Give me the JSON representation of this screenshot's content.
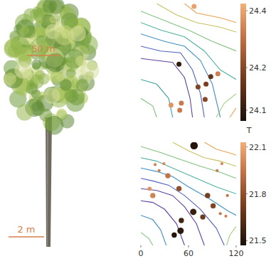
{
  "figure": {
    "labels": [
      "50 m",
      "2 m"
    ]
  },
  "chart_data": [
    {
      "type": "scatter",
      "xlim": [
        0,
        120
      ],
      "ylim": [
        0,
        120
      ],
      "tick_labels": false,
      "color_range": [
        24.07,
        24.4
      ],
      "color_ticks": [
        {
          "value": 24.38,
          "label": "24.4"
        },
        {
          "value": 24.22,
          "label": "24.2"
        },
        {
          "value": 24.1,
          "label": "24.1"
        }
      ],
      "color_label": "T",
      "series": [
        {
          "type": "line",
          "color": "#e8a050",
          "x": [
            55,
            70,
            100,
            120
          ],
          "values": [
            120,
            110,
            105,
            100
          ]
        },
        {
          "type": "line",
          "color": "#c8c060",
          "x": [
            20,
            45,
            70,
            100,
            120
          ],
          "values": [
            120,
            108,
            100,
            95,
            90
          ]
        },
        {
          "type": "line",
          "color": "#80c080",
          "x": [
            0,
            30,
            60,
            90,
            120
          ],
          "values": [
            112,
            102,
            92,
            80,
            70
          ]
        },
        {
          "type": "line",
          "color": "#50b0a0",
          "x": [
            0,
            25,
            55,
            80,
            100,
            120
          ],
          "values": [
            100,
            92,
            85,
            70,
            50,
            40
          ]
        },
        {
          "type": "line",
          "color": "#4090c0",
          "x": [
            0,
            30,
            55,
            75,
            90,
            100
          ],
          "values": [
            88,
            80,
            75,
            60,
            35,
            0
          ]
        },
        {
          "type": "line",
          "color": "#5060c0",
          "x": [
            0,
            25,
            50,
            65,
            75,
            80
          ],
          "values": [
            75,
            70,
            68,
            50,
            25,
            0
          ]
        },
        {
          "type": "line",
          "color": "#6040a0",
          "x": [
            0,
            20,
            40,
            55,
            62,
            65
          ],
          "values": [
            62,
            60,
            58,
            42,
            20,
            0
          ]
        },
        {
          "type": "line",
          "color": "#40a0a0",
          "x": [
            0,
            20,
            35,
            40
          ],
          "values": [
            40,
            35,
            20,
            0
          ]
        },
        {
          "type": "line",
          "color": "#80c080",
          "x": [
            0,
            15,
            20
          ],
          "values": [
            20,
            12,
            0
          ]
        },
        {
          "type": "line",
          "color": "#a0d080",
          "x": [
            120,
            105,
            95
          ],
          "values": [
            25,
            15,
            0
          ]
        },
        {
          "type": "line",
          "color": "#e8a050",
          "x": [
            120,
            112
          ],
          "values": [
            10,
            0
          ]
        },
        {
          "type": "scatter",
          "x": [
            67,
            48,
            88,
            82,
            72,
            97,
            81,
            51,
            49,
            38
          ],
          "values": [
            117,
            56,
            43,
            35,
            32,
            46,
            19,
            15,
            7.5,
            13
          ],
          "t": [
            24.38,
            24.1,
            24.17,
            24.2,
            24.21,
            24.33,
            24.22,
            24.32,
            24.32,
            24.36
          ]
        }
      ]
    },
    {
      "type": "scatter",
      "xlim": [
        0,
        120
      ],
      "ylim": [
        0,
        120
      ],
      "xticks": [
        0,
        60,
        120
      ],
      "tick_labels": "x",
      "color_range": [
        21.47,
        22.13
      ],
      "color_ticks": [
        22.1,
        21.8,
        21.5
      ],
      "series": [
        {
          "type": "line",
          "color": "#e8a050",
          "x": [
            80,
            95,
            110,
            120
          ],
          "values": [
            120,
            112,
            108,
            105
          ]
        },
        {
          "type": "line",
          "color": "#c8c060",
          "x": [
            40,
            60,
            80,
            100,
            120
          ],
          "values": [
            120,
            110,
            102,
            98,
            92
          ]
        },
        {
          "type": "line",
          "color": "#80c080",
          "x": [
            0,
            25,
            50,
            75,
            100,
            120
          ],
          "values": [
            115,
            108,
            100,
            92,
            85,
            78
          ]
        },
        {
          "type": "line",
          "color": "#50b0a0",
          "x": [
            0,
            20,
            45,
            70,
            95,
            120
          ],
          "values": [
            102,
            98,
            88,
            78,
            68,
            60
          ]
        },
        {
          "type": "line",
          "color": "#4090c0",
          "x": [
            0,
            20,
            40,
            60,
            85,
            110,
            120
          ],
          "values": [
            90,
            86,
            80,
            68,
            55,
            40,
            35
          ]
        },
        {
          "type": "line",
          "color": "#5060c0",
          "x": [
            0,
            15,
            35,
            55,
            75,
            95,
            105
          ],
          "values": [
            78,
            75,
            70,
            58,
            42,
            20,
            0
          ]
        },
        {
          "type": "line",
          "color": "#6040a0",
          "x": [
            0,
            20,
            40,
            55,
            70,
            80
          ],
          "values": [
            66,
            64,
            58,
            45,
            25,
            0
          ]
        },
        {
          "type": "line",
          "color": "#6040a0",
          "x": [
            0,
            15,
            30,
            45,
            55
          ],
          "values": [
            52,
            50,
            42,
            25,
            0
          ]
        },
        {
          "type": "line",
          "color": "#4090c0",
          "x": [
            0,
            15,
            25,
            32
          ],
          "values": [
            35,
            30,
            18,
            0
          ]
        },
        {
          "type": "line",
          "color": "#80c080",
          "x": [
            0,
            10,
            15
          ],
          "values": [
            15,
            8,
            0
          ]
        },
        {
          "type": "line",
          "color": "#a0d080",
          "x": [
            120,
            112,
            108
          ],
          "values": [
            22,
            12,
            0
          ]
        },
        {
          "type": "scatter",
          "x": [
            67,
            18,
            29,
            23,
            34,
            11,
            15,
            48,
            66,
            84,
            91,
            78,
            51,
            50,
            42,
            100,
            107,
            109,
            102,
            96
          ],
          "values": [
            116,
            94,
            95,
            87,
            81,
            66,
            58,
            66,
            39,
            58,
            46,
            33,
            29,
            17,
            12,
            37,
            34,
            58,
            95,
            87
          ],
          "t": [
            21.5,
            22.0,
            22.02,
            21.98,
            21.95,
            22.05,
            22.0,
            21.8,
            21.55,
            21.72,
            21.75,
            21.7,
            21.58,
            21.52,
            21.5,
            21.95,
            22.0,
            21.95,
            22.02,
            21.98
          ],
          "size": [
            5,
            1,
            1,
            1,
            3,
            2,
            3,
            3,
            4,
            3,
            3,
            3,
            3,
            4,
            3,
            1,
            1,
            1,
            1,
            1
          ]
        }
      ]
    }
  ]
}
